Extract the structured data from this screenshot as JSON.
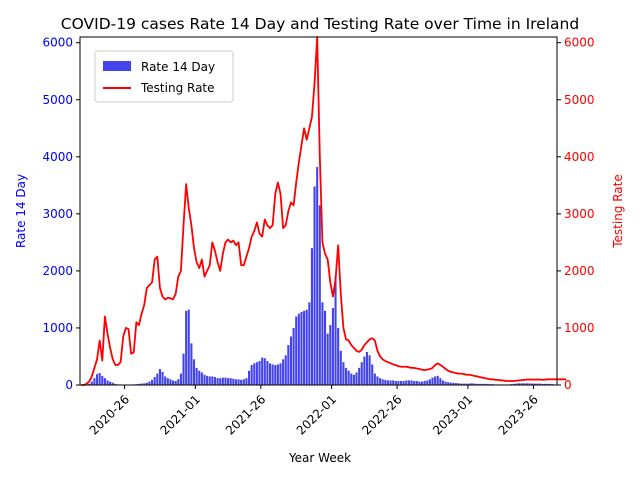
{
  "chart_data": {
    "type": "bar",
    "title": "COVID-19 cases Rate 14 Day and Testing Rate over Time in Ireland",
    "xlabel": "Year Week",
    "ylabel_left": "Rate 14 Day",
    "ylabel_right": "Testing Rate",
    "left_axis_color": "#0000ff",
    "right_axis_color": "#ff0000",
    "bar_color": "#4444ee",
    "line_color": "#ff0000",
    "ylim_left": [
      0,
      6100
    ],
    "ylim_right": [
      0,
      6100
    ],
    "yticks_left": [
      0,
      1000,
      2000,
      3000,
      4000,
      5000,
      6000
    ],
    "yticks_right": [
      0,
      1000,
      2000,
      3000,
      4000,
      5000,
      6000
    ],
    "xtick_labels": [
      "2020-26",
      "2021-01",
      "2021-26",
      "2022-01",
      "2022-26",
      "2023-01",
      "2023-26"
    ],
    "xtick_weeks": [
      17,
      44,
      69,
      96,
      121,
      148,
      173
    ],
    "week_range": [
      0,
      182
    ],
    "legend_position": "upper left",
    "grid": false,
    "series": [
      {
        "name": "Rate 14 Day",
        "kind": "bar",
        "values": [
          0,
          0,
          5,
          20,
          60,
          120,
          190,
          210,
          160,
          120,
          80,
          60,
          40,
          20,
          10,
          5,
          5,
          5,
          5,
          5,
          10,
          15,
          20,
          25,
          30,
          40,
          60,
          90,
          140,
          200,
          280,
          230,
          150,
          120,
          100,
          80,
          70,
          100,
          200,
          550,
          1300,
          1320,
          730,
          450,
          300,
          250,
          220,
          180,
          160,
          150,
          150,
          140,
          120,
          120,
          130,
          130,
          120,
          120,
          110,
          100,
          100,
          90,
          100,
          120,
          250,
          350,
          380,
          400,
          420,
          480,
          470,
          420,
          380,
          360,
          350,
          360,
          380,
          450,
          520,
          700,
          850,
          1000,
          1200,
          1250,
          1280,
          1300,
          1320,
          1450,
          2400,
          3480,
          3820,
          3150,
          1450,
          1300,
          900,
          1050,
          1350,
          1900,
          1000,
          600,
          400,
          300,
          250,
          200,
          180,
          220,
          300,
          400,
          500,
          580,
          520,
          360,
          200,
          150,
          120,
          100,
          90,
          80,
          80,
          80,
          70,
          70,
          70,
          70,
          80,
          80,
          80,
          70,
          70,
          60,
          60,
          70,
          80,
          100,
          130,
          150,
          160,
          120,
          80,
          60,
          50,
          40,
          40,
          35,
          30,
          25,
          25,
          25,
          25,
          30,
          25,
          20,
          20,
          20,
          20,
          20,
          15,
          15,
          10,
          10,
          10,
          10,
          10,
          10,
          15,
          20,
          25,
          30,
          30,
          30,
          30,
          30,
          25,
          25,
          25,
          25,
          20,
          20,
          20,
          20,
          15
        ]
      },
      {
        "name": "Testing Rate",
        "kind": "line",
        "values": [
          0,
          0,
          20,
          60,
          150,
          300,
          450,
          780,
          430,
          1200,
          900,
          650,
          450,
          350,
          350,
          400,
          850,
          1000,
          980,
          550,
          570,
          1100,
          1050,
          1250,
          1400,
          1700,
          1750,
          1800,
          2200,
          2250,
          1700,
          1550,
          1500,
          1530,
          1520,
          1500,
          1600,
          1900,
          2000,
          2800,
          3520,
          3100,
          2800,
          2400,
          2150,
          2050,
          2200,
          1900,
          2000,
          2100,
          2500,
          2350,
          2150,
          2000,
          2300,
          2500,
          2550,
          2500,
          2530,
          2450,
          2500,
          2100,
          2100,
          2250,
          2400,
          2600,
          2700,
          2850,
          2650,
          2600,
          2900,
          2800,
          2750,
          2800,
          3350,
          3550,
          3350,
          2750,
          2800,
          3050,
          3200,
          3150,
          3550,
          3900,
          4200,
          4500,
          4300,
          4500,
          4700,
          5300,
          6100,
          4000,
          2500,
          2300,
          2200,
          1800,
          1550,
          1850,
          2450,
          1600,
          1000,
          800,
          780,
          700,
          650,
          600,
          580,
          620,
          700,
          750,
          800,
          820,
          780,
          600,
          500,
          450,
          420,
          400,
          380,
          360,
          350,
          330,
          320,
          320,
          320,
          310,
          300,
          300,
          290,
          280,
          270,
          260,
          270,
          280,
          300,
          350,
          380,
          350,
          320,
          280,
          250,
          230,
          220,
          210,
          200,
          200,
          190,
          180,
          180,
          170,
          160,
          150,
          140,
          130,
          120,
          110,
          100,
          100,
          90,
          90,
          80,
          80,
          70,
          70,
          70,
          70,
          75,
          80,
          85,
          90,
          95,
          95,
          95,
          95,
          95,
          95,
          90,
          95,
          100,
          100,
          100,
          100,
          100,
          100,
          100,
          100
        ]
      }
    ]
  }
}
